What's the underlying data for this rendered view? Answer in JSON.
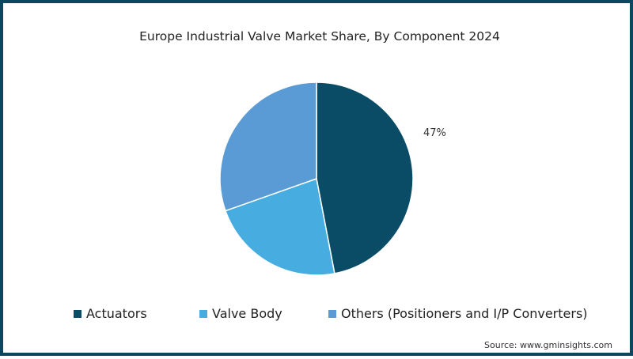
{
  "chart_data": {
    "type": "pie",
    "title": "Europe Industrial Valve Market Share, By Component 2024",
    "categories": [
      "Actuators",
      "Valve Body",
      "Others (Positioners and I/P Converters)"
    ],
    "values": [
      47,
      22.6,
      30.4
    ],
    "colors": [
      "#0a4c65",
      "#47ade0",
      "#5b9bd5"
    ],
    "data_labels": [
      {
        "category": "Actuators",
        "label": "47%"
      }
    ],
    "legend_position": "bottom",
    "source": "Source: www.gminsights.com"
  },
  "title": "Europe Industrial Valve Market Share, By Component 2024",
  "label_actuators": "47%",
  "legend": [
    {
      "label": "Actuators",
      "color": "#0a4c65"
    },
    {
      "label": "Valve Body",
      "color": "#47ade0"
    },
    {
      "label": "Others (Positioners and I/P Converters)",
      "color": "#5b9bd5"
    }
  ],
  "source": "Source: www.gminsights.com"
}
